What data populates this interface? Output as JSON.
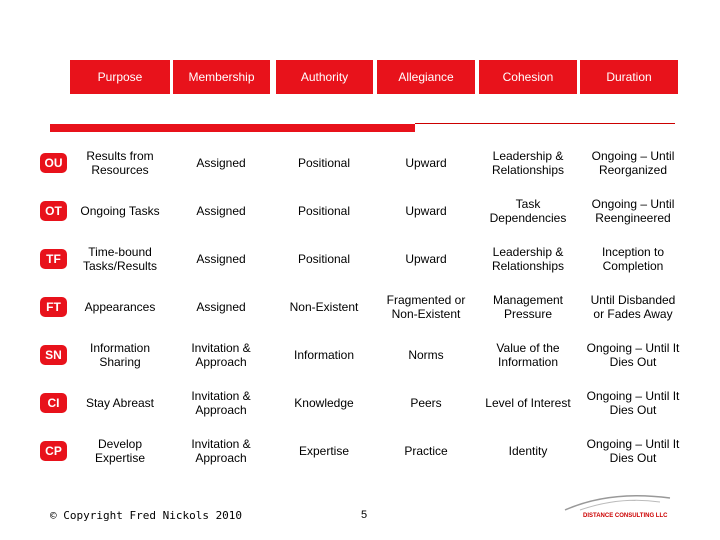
{
  "header": {
    "columns": [
      "Purpose",
      "Membership",
      "Authority",
      "Allegiance",
      "Cohesion",
      "Duration"
    ]
  },
  "table": {
    "rows": [
      {
        "code": "OU",
        "cells": [
          "Results from Resources",
          "Assigned",
          "Positional",
          "Upward",
          "Leadership & Relationships",
          "Ongoing – Until Reorganized"
        ]
      },
      {
        "code": "OT",
        "cells": [
          "Ongoing Tasks",
          "Assigned",
          "Positional",
          "Upward",
          "Task Dependencies",
          "Ongoing – Until Reengineered"
        ]
      },
      {
        "code": "TF",
        "cells": [
          "Time-bound Tasks/Results",
          "Assigned",
          "Positional",
          "Upward",
          "Leadership & Relationships",
          "Inception to Completion"
        ]
      },
      {
        "code": "FT",
        "cells": [
          "Appearances",
          "Assigned",
          "Non-Existent",
          "Fragmented or Non-Existent",
          "Management Pressure",
          "Until Disbanded or Fades Away"
        ]
      },
      {
        "code": "SN",
        "cells": [
          "Information Sharing",
          "Invitation & Approach",
          "Information",
          "Norms",
          "Value of the Information",
          "Ongoing – Until It Dies Out"
        ]
      },
      {
        "code": "CI",
        "cells": [
          "Stay Abreast",
          "Invitation & Approach",
          "Knowledge",
          "Peers",
          "Level of Interest",
          "Ongoing – Until It Dies Out"
        ]
      },
      {
        "code": "CP",
        "cells": [
          "Develop Expertise",
          "Invitation & Approach",
          "Expertise",
          "Practice",
          "Identity",
          "Ongoing – Until It Dies Out"
        ]
      }
    ]
  },
  "footer": {
    "copyright": "© Copyright Fred Nickols 2010",
    "page_number": "5",
    "logo": "DISTANCE CONSULTING LLC"
  }
}
